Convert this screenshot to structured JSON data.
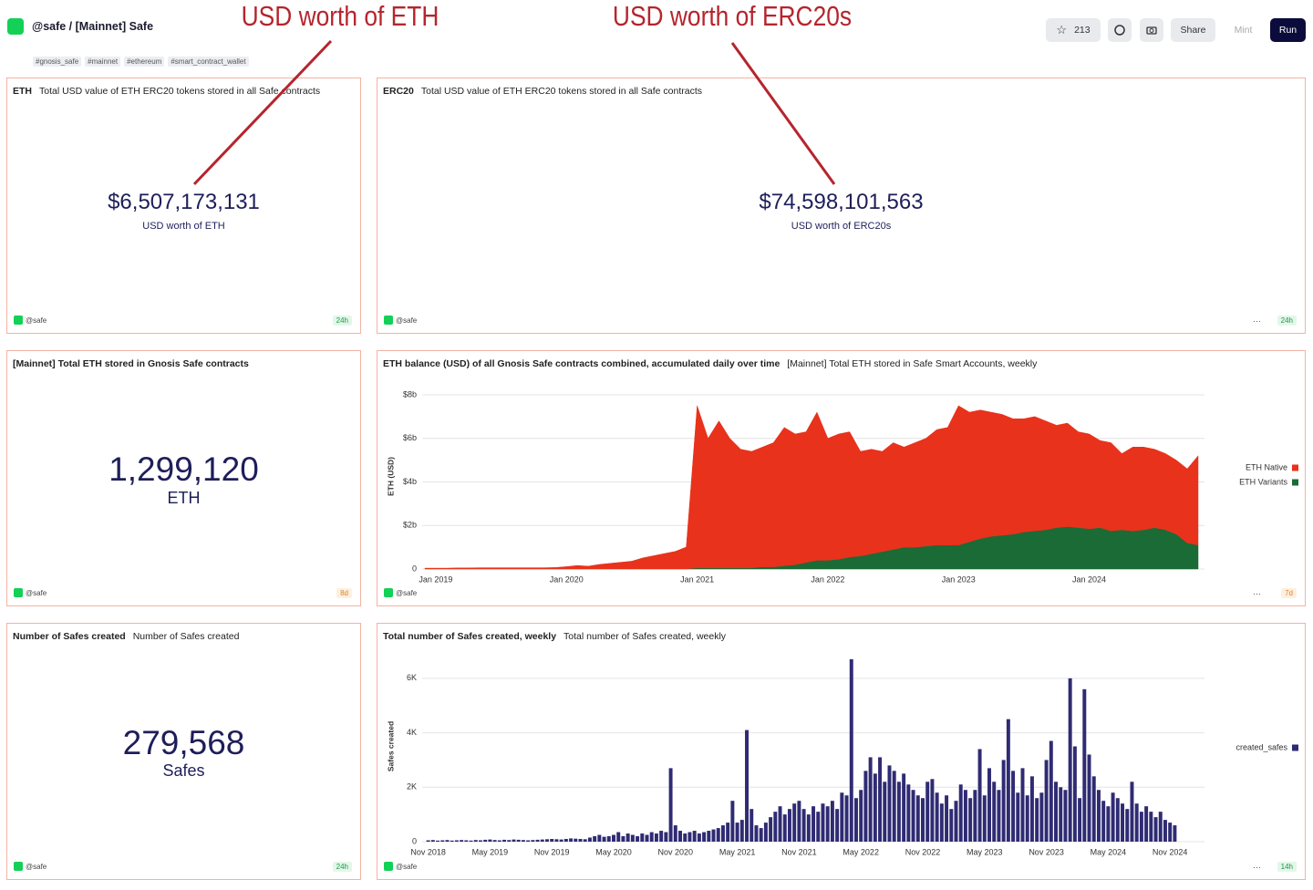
{
  "header": {
    "title": "@safe / [Mainnet] Safe",
    "tags": [
      "#gnosis_safe",
      "#mainnet",
      "#ethereum",
      "#smart_contract_wallet"
    ],
    "stars": 213,
    "buttons": [
      "Share",
      "Mint",
      "Run"
    ]
  },
  "annotations": [
    "USD worth of ETH",
    "USD worth of ERC20s"
  ],
  "counters": [
    {
      "name": "ETH",
      "title": "Total USD value of ETH ERC20 tokens stored in all Safe contracts",
      "value": "$6,507,173,131",
      "label": "USD worth of ETH",
      "author": "@safe",
      "age": "24h"
    },
    {
      "name": "ERC20",
      "title": "Total USD value of ETH ERC20 tokens stored in all Safe contracts",
      "value": "$74,598,101,563",
      "label": "USD worth of ERC20s",
      "author": "@safe",
      "age": "24h"
    },
    {
      "name": "[Mainnet] Total ETH stored in Gnosis Safe contracts",
      "value": "1,299,120",
      "label": "ETH",
      "author": "@safe",
      "age": "8d"
    },
    {
      "name": "Number of Safes created",
      "title": "Number of Safes created",
      "value": "279,568",
      "label": "Safes",
      "author": "@safe",
      "age": "24h"
    }
  ],
  "chart_footers": [
    {
      "author": "@safe",
      "age": "7d"
    },
    {
      "author": "@safe",
      "age": "14h"
    }
  ],
  "chart_data": [
    {
      "type": "area",
      "stacked": true,
      "title": "ETH balance (USD) of all Gnosis Safe contracts combined, accumulated daily over time",
      "subtitle": "[Mainnet] Total ETH stored in Safe Smart Accounts, weekly",
      "ylabel": "ETH (USD)",
      "categories": [
        null,
        "Jan 2019",
        null,
        null,
        null,
        null,
        null,
        null,
        null,
        null,
        null,
        null,
        null,
        "Jan 2020",
        null,
        null,
        null,
        null,
        null,
        null,
        null,
        null,
        null,
        null,
        null,
        "Jan 2021",
        null,
        null,
        null,
        null,
        null,
        null,
        null,
        null,
        null,
        null,
        null,
        "Jan 2022",
        null,
        null,
        null,
        null,
        null,
        null,
        null,
        null,
        null,
        null,
        null,
        "Jan 2023",
        null,
        null,
        null,
        null,
        null,
        null,
        null,
        null,
        null,
        null,
        null,
        "Jan 2024",
        null,
        null,
        null,
        null,
        null,
        null,
        null,
        null,
        null,
        null
      ],
      "series": [
        {
          "name": "ETH Native",
          "color": "#e8321b",
          "values": [
            0.03,
            0.03,
            0.03,
            0.04,
            0.04,
            0.05,
            0.05,
            0.05,
            0.05,
            0.05,
            0.05,
            0.05,
            0.06,
            0.1,
            0.15,
            0.12,
            0.2,
            0.25,
            0.3,
            0.35,
            0.5,
            0.6,
            0.7,
            0.8,
            1.0,
            7.45,
            5.95,
            6.75,
            5.95,
            5.45,
            5.35,
            5.5,
            5.7,
            6.35,
            6.0,
            6.0,
            6.8,
            5.6,
            5.75,
            5.75,
            4.8,
            4.8,
            4.6,
            4.9,
            4.6,
            4.8,
            4.95,
            5.3,
            5.4,
            6.4,
            5.95,
            5.9,
            5.7,
            5.55,
            5.3,
            5.2,
            5.25,
            5.0,
            4.7,
            4.75,
            4.4,
            4.35,
            4.0,
            4.05,
            3.5,
            3.85,
            3.8,
            3.6,
            3.5,
            3.4,
            3.4,
            4.1
          ]
        },
        {
          "name": "ETH Variants",
          "color": "#1a6b35",
          "values": [
            0.01,
            0.01,
            0.01,
            0.01,
            0.01,
            0.01,
            0.01,
            0.01,
            0.01,
            0.01,
            0.01,
            0.01,
            0.01,
            0.01,
            0.01,
            0.01,
            0.01,
            0.01,
            0.01,
            0.01,
            0.01,
            0.01,
            0.01,
            0.01,
            0.01,
            0.05,
            0.05,
            0.05,
            0.05,
            0.05,
            0.05,
            0.1,
            0.1,
            0.15,
            0.2,
            0.3,
            0.4,
            0.4,
            0.45,
            0.55,
            0.6,
            0.7,
            0.8,
            0.9,
            1.0,
            1.0,
            1.05,
            1.1,
            1.1,
            1.1,
            1.25,
            1.4,
            1.5,
            1.55,
            1.6,
            1.7,
            1.75,
            1.8,
            1.9,
            1.95,
            1.9,
            1.85,
            1.9,
            1.75,
            1.8,
            1.75,
            1.8,
            1.9,
            1.8,
            1.6,
            1.2,
            1.1
          ]
        }
      ],
      "ylim": [
        0,
        8.5
      ],
      "yticks": [
        0,
        {
          "value": 2,
          "label": "$2b"
        },
        {
          "value": 4,
          "label": "$4b"
        },
        {
          "value": 6,
          "label": "$6b"
        },
        {
          "value": 8,
          "label": "$8b"
        }
      ],
      "grid": true,
      "legend": "right"
    },
    {
      "type": "bar",
      "title": "Total number of Safes created, weekly",
      "subtitle": "Total number of Safes created, weekly",
      "ylabel": "Safes created",
      "categories": [
        "Nov 2018",
        null,
        null,
        null,
        null,
        null,
        null,
        null,
        null,
        null,
        null,
        null,
        null,
        "May 2019",
        null,
        null,
        null,
        null,
        null,
        null,
        null,
        null,
        null,
        null,
        null,
        null,
        "Nov 2019",
        null,
        null,
        null,
        null,
        null,
        null,
        null,
        null,
        null,
        null,
        null,
        null,
        "May 2020",
        null,
        null,
        null,
        null,
        null,
        null,
        null,
        null,
        null,
        null,
        null,
        null,
        "Nov 2020",
        null,
        null,
        null,
        null,
        null,
        null,
        null,
        null,
        null,
        null,
        null,
        null,
        "May 2021",
        null,
        null,
        null,
        null,
        null,
        null,
        null,
        null,
        null,
        null,
        null,
        null,
        "Nov 2021",
        null,
        null,
        null,
        null,
        null,
        null,
        null,
        null,
        null,
        null,
        null,
        null,
        "May 2022",
        null,
        null,
        null,
        null,
        null,
        null,
        null,
        null,
        null,
        null,
        null,
        null,
        "Nov 2022",
        null,
        null,
        null,
        null,
        null,
        null,
        null,
        null,
        null,
        null,
        null,
        null,
        "May 2023",
        null,
        null,
        null,
        null,
        null,
        null,
        null,
        null,
        null,
        null,
        null,
        null,
        "Nov 2023",
        null,
        null,
        null,
        null,
        null,
        null,
        null,
        null,
        null,
        null,
        null,
        null,
        "May 2024",
        null,
        null,
        null,
        null,
        null,
        null,
        null,
        null,
        null,
        null,
        null,
        null,
        "Nov 2024",
        null
      ],
      "series": [
        {
          "name": "created_safes",
          "color": "#2f2b73",
          "values": [
            50,
            60,
            40,
            50,
            60,
            40,
            50,
            60,
            50,
            40,
            60,
            50,
            70,
            80,
            60,
            50,
            70,
            60,
            80,
            70,
            60,
            50,
            60,
            70,
            80,
            90,
            100,
            90,
            80,
            100,
            120,
            110,
            100,
            90,
            150,
            200,
            250,
            180,
            200,
            250,
            350,
            200,
            300,
            250,
            200,
            300,
            250,
            350,
            300,
            400,
            350,
            2700,
            600,
            400,
            300,
            350,
            400,
            300,
            350,
            400,
            450,
            500,
            600,
            700,
            1500,
            700,
            800,
            4100,
            1200,
            600,
            500,
            700,
            900,
            1100,
            1300,
            1000,
            1200,
            1400,
            1500,
            1200,
            1000,
            1300,
            1100,
            1400,
            1300,
            1500,
            1200,
            1800,
            1700,
            6700,
            1600,
            1900,
            2600,
            3100,
            2500,
            3100,
            2200,
            2800,
            2600,
            2200,
            2500,
            2100,
            1900,
            1700,
            1600,
            2200,
            2300,
            1800,
            1400,
            1700,
            1200,
            1500,
            2100,
            1900,
            1600,
            1900,
            3400,
            1700,
            2700,
            2200,
            1900,
            3000,
            4500,
            2600,
            1800,
            2700,
            1700,
            2400,
            1600,
            1800,
            3000,
            3700,
            2200,
            2000,
            1900,
            6000,
            3500,
            1600,
            5600,
            3200,
            2400,
            1900,
            1500,
            1300,
            1800,
            1600,
            1400,
            1200,
            2200,
            1400,
            1100,
            1300,
            1100,
            900,
            1100,
            800,
            700,
            600
          ]
        }
      ],
      "ylim": [
        0,
        7000
      ],
      "yticks": [
        0,
        {
          "value": 2000,
          "label": "2K"
        },
        {
          "value": 4000,
          "label": "4K"
        },
        {
          "value": 6000,
          "label": "6K"
        }
      ],
      "grid": true,
      "legend": "right"
    }
  ]
}
